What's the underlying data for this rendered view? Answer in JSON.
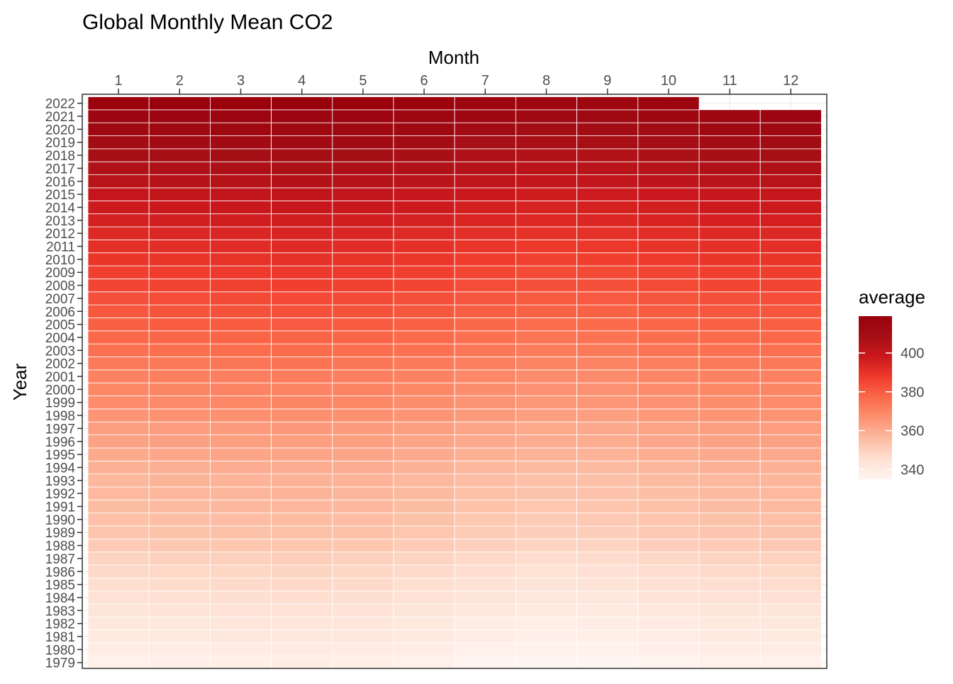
{
  "chart_data": {
    "type": "heatmap",
    "title": "Global Monthly Mean CO2",
    "xlabel": "Month",
    "ylabel": "Year",
    "x_position": "top",
    "x_categories": [
      "1",
      "2",
      "3",
      "4",
      "5",
      "6",
      "7",
      "8",
      "9",
      "10",
      "11",
      "12"
    ],
    "y_categories": [
      "1979",
      "1980",
      "1981",
      "1982",
      "1983",
      "1984",
      "1985",
      "1986",
      "1987",
      "1988",
      "1989",
      "1990",
      "1991",
      "1992",
      "1993",
      "1994",
      "1995",
      "1996",
      "1997",
      "1998",
      "1999",
      "2000",
      "2001",
      "2002",
      "2003",
      "2004",
      "2005",
      "2006",
      "2007",
      "2008",
      "2009",
      "2010",
      "2011",
      "2012",
      "2013",
      "2014",
      "2015",
      "2016",
      "2017",
      "2018",
      "2019",
      "2020",
      "2021",
      "2022"
    ],
    "annual_mean": {
      "1979": 336.8,
      "1980": 338.7,
      "1981": 340.1,
      "1982": 340.9,
      "1983": 342.6,
      "1984": 344.2,
      "1985": 345.7,
      "1986": 347.0,
      "1987": 348.7,
      "1988": 351.3,
      "1989": 352.8,
      "1990": 354.0,
      "1991": 355.3,
      "1992": 356.0,
      "1993": 356.7,
      "1994": 358.2,
      "1995": 360.2,
      "1996": 361.8,
      "1997": 362.9,
      "1998": 365.5,
      "1999": 367.6,
      "2000": 368.8,
      "2001": 370.4,
      "2002": 372.4,
      "2003": 374.9,
      "2004": 376.8,
      "2005": 378.8,
      "2006": 380.9,
      "2007": 382.7,
      "2008": 384.8,
      "2009": 386.3,
      "2010": 388.6,
      "2011": 390.5,
      "2012": 392.5,
      "2013": 395.2,
      "2014": 397.1,
      "2015": 399.4,
      "2016": 402.9,
      "2017": 405.0,
      "2018": 407.6,
      "2019": 410.1,
      "2020": 412.4,
      "2021": 414.7,
      "2022": 417.1
    },
    "seasonal_offset": [
      0.4,
      1.0,
      1.4,
      1.7,
      1.4,
      0.2,
      -1.3,
      -2.3,
      -2.1,
      -0.8,
      0.3,
      0.6
    ],
    "missing_cells": [
      [
        "2022",
        "11"
      ],
      [
        "2022",
        "12"
      ]
    ],
    "legend": {
      "title": "average",
      "min": 335,
      "max": 419,
      "ticks": [
        340,
        360,
        380,
        400
      ],
      "tick_labels": [
        "340",
        "360",
        "380",
        "400"
      ],
      "position": "right"
    },
    "color_stops": [
      "#FFF5F0",
      "#FEE0D2",
      "#FCBBA1",
      "#FC9272",
      "#FB6A4A",
      "#EF3B2C",
      "#CB181D",
      "#A50F15",
      "#99000D"
    ],
    "grid": true
  }
}
